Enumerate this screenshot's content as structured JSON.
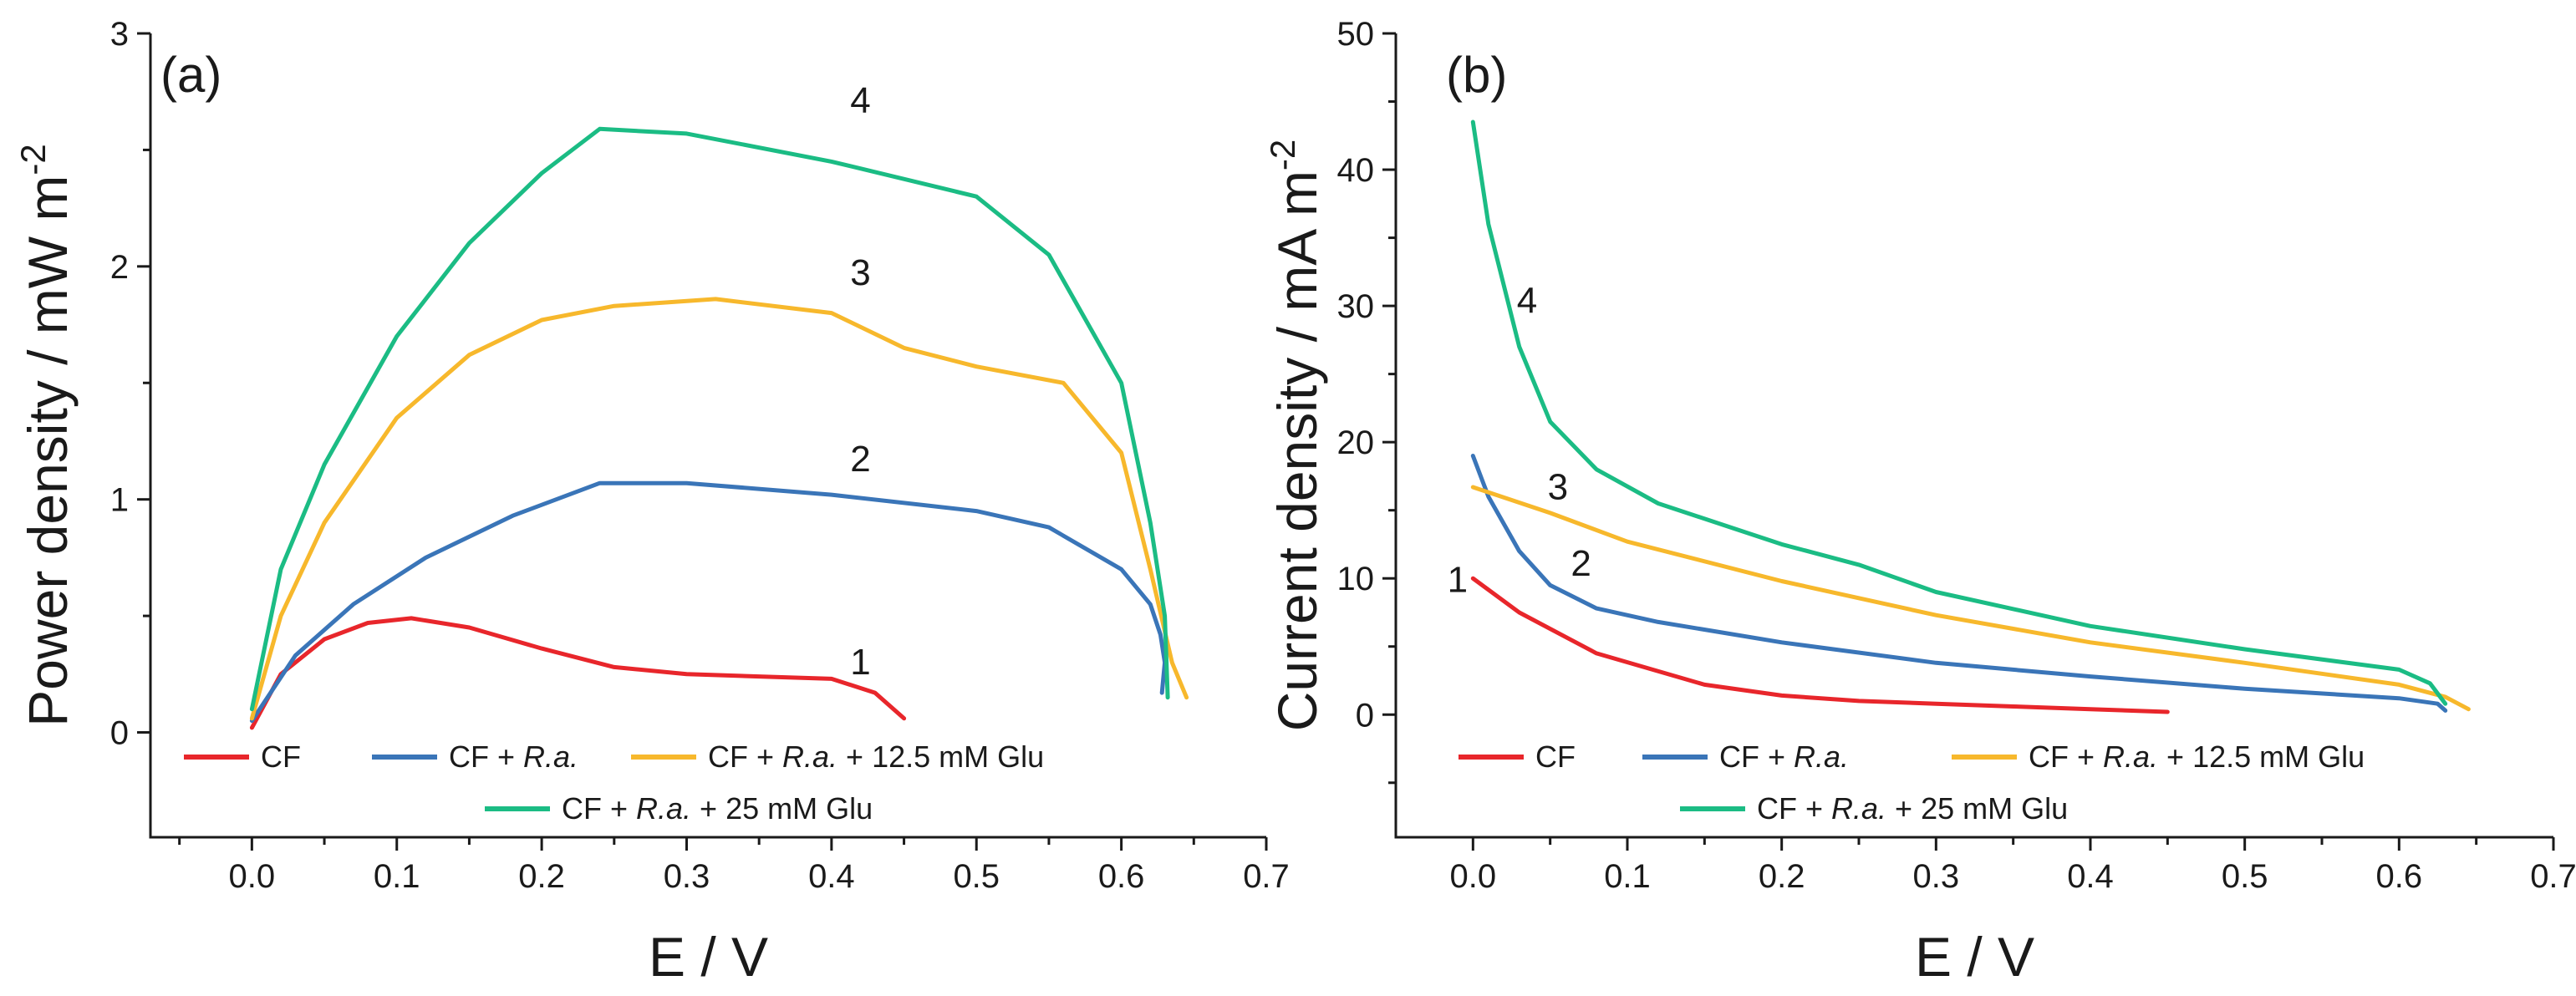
{
  "chart_data": [
    {
      "type": "line",
      "panel_label": "(a)",
      "xlabel": "E / V",
      "ylabel_main": "Power density / mW m",
      "ylabel_sup": "-2",
      "xlim": [
        -0.07,
        0.7
      ],
      "ylim": [
        -0.45,
        3.0
      ],
      "xticks": [
        0.0,
        0.1,
        0.2,
        0.3,
        0.4,
        0.5,
        0.6,
        0.7
      ],
      "xtick_labels": [
        "0.0",
        "0.1",
        "0.2",
        "0.3",
        "0.4",
        "0.5",
        "0.6",
        "0.7"
      ],
      "yticks": [
        0,
        1,
        2,
        3
      ],
      "ytick_labels": [
        "0",
        "1",
        "2",
        "3"
      ],
      "legend_position": "bottom",
      "series": [
        {
          "name": "CF",
          "name_prefix": "CF",
          "name_italic": "",
          "name_suffix": "",
          "label": "1",
          "label_at": [
            0.42,
            0.25
          ],
          "color": "#e8262b",
          "x": [
            0.0,
            0.02,
            0.05,
            0.08,
            0.11,
            0.15,
            0.2,
            0.25,
            0.3,
            0.35,
            0.4,
            0.43,
            0.45
          ],
          "y": [
            0.02,
            0.25,
            0.4,
            0.47,
            0.49,
            0.45,
            0.36,
            0.28,
            0.25,
            0.24,
            0.23,
            0.17,
            0.06
          ]
        },
        {
          "name": "CF + R.a.",
          "name_prefix": "CF + ",
          "name_italic": "R.a.",
          "name_suffix": "",
          "label": "2",
          "label_at": [
            0.42,
            1.12
          ],
          "color": "#3a75b8",
          "x": [
            0.0,
            0.03,
            0.07,
            0.12,
            0.18,
            0.24,
            0.3,
            0.4,
            0.5,
            0.55,
            0.6,
            0.62,
            0.627,
            0.63,
            0.628
          ],
          "y": [
            0.05,
            0.33,
            0.55,
            0.75,
            0.93,
            1.07,
            1.07,
            1.02,
            0.95,
            0.88,
            0.7,
            0.55,
            0.42,
            0.3,
            0.17
          ]
        },
        {
          "name": "CF + R.a. + 12.5 mM Glu",
          "name_prefix": "CF + ",
          "name_italic": "R.a.",
          "name_suffix": " + 12.5 mM Glu",
          "label": "3",
          "label_at": [
            0.42,
            1.92
          ],
          "color": "#f7b82c",
          "x": [
            0.0,
            0.02,
            0.05,
            0.1,
            0.15,
            0.2,
            0.25,
            0.32,
            0.4,
            0.45,
            0.5,
            0.56,
            0.6,
            0.62,
            0.635,
            0.645
          ],
          "y": [
            0.06,
            0.5,
            0.9,
            1.35,
            1.62,
            1.77,
            1.83,
            1.86,
            1.8,
            1.65,
            1.57,
            1.5,
            1.2,
            0.7,
            0.3,
            0.15
          ]
        },
        {
          "name": "CF + R.a. + 25 mM Glu",
          "name_prefix": "CF + ",
          "name_italic": "R.a.",
          "name_suffix": " + 25 mM Glu",
          "label": "4",
          "label_at": [
            0.42,
            2.66
          ],
          "color": "#1bbc84",
          "x": [
            0.0,
            0.02,
            0.05,
            0.1,
            0.15,
            0.2,
            0.24,
            0.3,
            0.4,
            0.5,
            0.55,
            0.6,
            0.62,
            0.63,
            0.632
          ],
          "y": [
            0.1,
            0.7,
            1.15,
            1.7,
            2.1,
            2.4,
            2.59,
            2.57,
            2.45,
            2.3,
            2.05,
            1.5,
            0.9,
            0.5,
            0.15
          ]
        }
      ]
    },
    {
      "type": "line",
      "panel_label": "(b)",
      "xlabel": "E / V",
      "ylabel_main": "Current density / mA m",
      "ylabel_sup": "-2",
      "xlim": [
        -0.05,
        0.7
      ],
      "ylim": [
        -9,
        50
      ],
      "xticks": [
        0.0,
        0.1,
        0.2,
        0.3,
        0.4,
        0.5,
        0.6,
        0.7
      ],
      "xtick_labels": [
        "0.0",
        "0.1",
        "0.2",
        "0.3",
        "0.4",
        "0.5",
        "0.6",
        "0.7"
      ],
      "yticks": [
        0,
        10,
        20,
        30,
        40,
        50
      ],
      "ytick_labels": [
        "0",
        "10",
        "20",
        "30",
        "40",
        "50"
      ],
      "legend_position": "bottom",
      "series": [
        {
          "name": "CF",
          "name_prefix": "CF",
          "name_italic": "",
          "name_suffix": "",
          "label": "1",
          "label_at": [
            -0.01,
            9.0
          ],
          "color": "#e8262b",
          "x": [
            0.0,
            0.03,
            0.08,
            0.15,
            0.2,
            0.25,
            0.3,
            0.35,
            0.4,
            0.45
          ],
          "y": [
            10.0,
            7.5,
            4.5,
            2.2,
            1.4,
            1.0,
            0.8,
            0.6,
            0.4,
            0.2
          ]
        },
        {
          "name": "CF + R.a.",
          "name_prefix": "CF + ",
          "name_italic": "R.a.",
          "name_suffix": "",
          "label": "2",
          "label_at": [
            0.07,
            10.2
          ],
          "color": "#3a75b8",
          "x": [
            0.0,
            0.01,
            0.03,
            0.05,
            0.08,
            0.12,
            0.2,
            0.3,
            0.4,
            0.5,
            0.6,
            0.625,
            0.63
          ],
          "y": [
            19.0,
            16.0,
            12.0,
            9.5,
            7.8,
            6.8,
            5.3,
            3.8,
            2.8,
            1.9,
            1.2,
            0.8,
            0.3
          ]
        },
        {
          "name": "CF + R.a. + 12.5 mM Glu",
          "name_prefix": "CF + ",
          "name_italic": "R.a.",
          "name_suffix": " + 12.5 mM Glu",
          "label": "3",
          "label_at": [
            0.055,
            15.8
          ],
          "color": "#f7b82c",
          "x": [
            0.0,
            0.05,
            0.1,
            0.2,
            0.3,
            0.4,
            0.5,
            0.6,
            0.63,
            0.645
          ],
          "y": [
            16.7,
            14.8,
            12.7,
            9.8,
            7.3,
            5.3,
            3.8,
            2.2,
            1.3,
            0.4
          ]
        },
        {
          "name": "CF + R.a. + 25 mM Glu",
          "name_prefix": "CF + ",
          "name_italic": "R.a.",
          "name_suffix": " + 25 mM Glu",
          "label": "4",
          "label_at": [
            0.035,
            29.5
          ],
          "color": "#1bbc84",
          "x": [
            0.0,
            0.01,
            0.03,
            0.05,
            0.08,
            0.12,
            0.2,
            0.25,
            0.3,
            0.4,
            0.5,
            0.6,
            0.62,
            0.63
          ],
          "y": [
            43.5,
            36.0,
            27.0,
            21.5,
            18.0,
            15.5,
            12.5,
            11.0,
            9.0,
            6.5,
            4.8,
            3.3,
            2.3,
            0.8
          ]
        }
      ]
    }
  ]
}
